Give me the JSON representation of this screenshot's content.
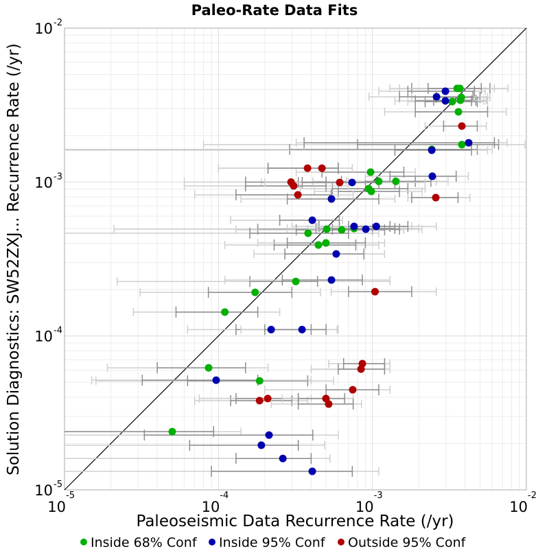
{
  "chart_data": {
    "type": "scatter",
    "title": "Paleo-Rate Data Fits",
    "xlabel": "Paleoseismic Data Recurrence Rate (/yr)",
    "ylabel": "Solution Diagnostics: SW52ZXJ... Recurrence Rate (/yr)",
    "xscale": "log",
    "yscale": "log",
    "xlim": [
      1e-05,
      0.01
    ],
    "ylim": [
      1e-05,
      0.01
    ],
    "grid": true,
    "reference_line": "y = x",
    "x_ticks": [
      {
        "base": "10",
        "exp": "-5"
      },
      {
        "base": "10",
        "exp": "-4"
      },
      {
        "base": "10",
        "exp": "-3"
      },
      {
        "base": "10",
        "exp": "-2"
      }
    ],
    "y_ticks": [
      {
        "base": "10",
        "exp": "-5"
      },
      {
        "base": "10",
        "exp": "-4"
      },
      {
        "base": "10",
        "exp": "-3"
      },
      {
        "base": "10",
        "exp": "-2"
      }
    ],
    "legend_position": "bottom",
    "series": [
      {
        "name": "Inside 68% Conf",
        "color": "#00b000",
        "points": [
          {
            "x": 0.00355,
            "y": 0.00406,
            "x68": [
              0.0018,
              0.0058
            ],
            "x95": [
              0.0013,
              0.0076
            ]
          },
          {
            "x": 0.0037,
            "y": 0.00406,
            "x68": [
              0.0023,
              0.0051
            ],
            "x95": [
              0.0015,
              0.0062
            ]
          },
          {
            "x": 0.0033,
            "y": 0.00333,
            "x68": [
              0.0022,
              0.0048
            ],
            "x95": [
              0.0017,
              0.0056
            ]
          },
          {
            "x": 0.00378,
            "y": 0.00355,
            "x68": [
              0.0026,
              0.005
            ],
            "x95": [
              0.0018,
              0.0058
            ]
          },
          {
            "x": 0.00373,
            "y": 0.0034,
            "x68": [
              0.0025,
              0.0047
            ],
            "x95": [
              0.0019,
              0.0055
            ]
          },
          {
            "x": 0.00362,
            "y": 0.00286,
            "x68": [
              0.0019,
              0.0056
            ],
            "x95": [
              0.0012,
              0.0074
            ]
          },
          {
            "x": 0.00381,
            "y": 0.00175,
            "x68": [
              0.0008,
              0.0066
            ],
            "x95": [
              8e-05,
              0.0098
            ]
          },
          {
            "x": 0.00243,
            "y": 0.00163,
            "x68": [
              0.00029,
              0.0048
            ],
            "x95": [
              1e-05,
              0.006
            ]
          },
          {
            "x": 0.000973,
            "y": 0.00116,
            "x68": [
              0.00047,
              0.0016
            ],
            "x95": [
              0.00032,
              0.0019
            ]
          },
          {
            "x": 0.0011,
            "y": 0.00101,
            "x68": [
              0.00063,
              0.0019
            ],
            "x95": [
              0.00041,
              0.0026
            ]
          },
          {
            "x": 0.00142,
            "y": 0.00101,
            "x68": [
              0.0009,
              0.0024
            ],
            "x95": [
              0.00068,
              0.0031
            ]
          },
          {
            "x": 0.000944,
            "y": 0.000906,
            "x68": [
              0.00055,
              0.0017
            ],
            "x95": [
              0.00034,
              0.0022
            ]
          },
          {
            "x": 0.000984,
            "y": 0.000869,
            "x68": [
              0.0006,
              0.0015
            ],
            "x95": [
              0.00042,
              0.0021
            ]
          },
          {
            "x": 0.000505,
            "y": 0.000494,
            "x68": [
              0.00018,
              0.001
            ],
            "x95": [
              2.1e-05,
              0.0014
            ]
          },
          {
            "x": 0.000632,
            "y": 0.000489,
            "x68": [
              0.00032,
              0.0012
            ],
            "x95": [
              0.00013,
              0.0016
            ]
          },
          {
            "x": 0.00076,
            "y": 0.000499,
            "x68": [
              0.00043,
              0.0014
            ],
            "x95": [
              0.00028,
              0.002
            ]
          },
          {
            "x": 0.000382,
            "y": 0.000465,
            "x68": [
              0.00016,
              0.0007
            ],
            "x95": [
              1e-05,
              0.0011
            ]
          },
          {
            "x": 0.000446,
            "y": 0.00039,
            "x68": [
              0.00023,
              0.00078
            ],
            "x95": [
              0.00011,
              0.0011
            ]
          },
          {
            "x": 0.000499,
            "y": 0.000402,
            "x68": [
              0.00028,
              0.0009
            ],
            "x95": [
              0.00018,
              0.0012
            ]
          },
          {
            "x": 0.000318,
            "y": 0.000226,
            "x68": [
              0.00016,
              0.00044
            ],
            "x95": [
              2.2e-05,
              0.0013
            ]
          },
          {
            "x": 0.000173,
            "y": 0.000192,
            "x68": [
              8.6e-05,
              0.0003
            ],
            "x95": [
              3.1e-05,
              0.00046
            ]
          },
          {
            "x": 0.00011,
            "y": 0.000143,
            "x68": [
              5.3e-05,
              0.00018
            ],
            "x95": [
              2.8e-05,
              0.00025
            ]
          },
          {
            "x": 8.63e-05,
            "y": 6.21e-05,
            "x68": [
              4e-05,
              0.00015
            ],
            "x95": [
              1.9e-05,
              0.00021
            ]
          },
          {
            "x": 0.000185,
            "y": 5.11e-05,
            "x68": [
              6.3e-05,
              0.00038
            ],
            "x95": [
              1.6e-05,
              0.00056
            ]
          },
          {
            "x": 5.01e-05,
            "y": 2.39e-05,
            "x68": [
              1e-05,
              9.3e-05
            ],
            "x95": [
              1e-05,
              0.00014
            ]
          }
        ]
      },
      {
        "name": "Inside 95% Conf",
        "color": "#0000b0",
        "points": [
          {
            "x": 0.00298,
            "y": 0.00389,
            "x68": [
              0.0017,
              0.0046
            ],
            "x95": [
              0.0011,
              0.0054
            ]
          },
          {
            "x": 0.00261,
            "y": 0.00358,
            "x68": [
              0.0015,
              0.0045
            ],
            "x95": [
              0.00095,
              0.0056
            ]
          },
          {
            "x": 0.00298,
            "y": 0.00337,
            "x68": [
              0.0019,
              0.0044
            ],
            "x95": [
              0.0014,
              0.0053
            ]
          },
          {
            "x": 0.00422,
            "y": 0.0018,
            "x68": [
              0.00036,
              0.0062
            ],
            "x95": [
              0.00032,
              0.0075
            ]
          },
          {
            "x": 0.00243,
            "y": 0.00161,
            "x68": [
              0.0014,
              0.0044
            ],
            "x95": [
              1e-05,
              0.0056
            ]
          },
          {
            "x": 0.000738,
            "y": 0.000993,
            "x68": [
              0.00033,
              0.0014
            ],
            "x95": [
              0.00019,
              0.0022
            ]
          },
          {
            "x": 0.00245,
            "y": 0.00109,
            "x68": [
              0.0013,
              0.0035
            ],
            "x95": [
              0.0009,
              0.0042
            ]
          },
          {
            "x": 0.000542,
            "y": 0.000776,
            "x68": [
              0.00028,
              0.0011
            ],
            "x95": [
              0.00014,
              0.0014
            ]
          },
          {
            "x": 0.000407,
            "y": 0.000565,
            "x68": [
              0.00025,
              0.00061
            ],
            "x95": [
              0.00012,
              0.00064
            ]
          },
          {
            "x": 0.00076,
            "y": 0.000515,
            "x68": [
              0.00045,
              0.0013
            ],
            "x95": [
              0.0003,
              0.0018
            ]
          },
          {
            "x": 0.000906,
            "y": 0.000494,
            "x68": [
              0.00055,
              0.0015
            ],
            "x95": [
              0.00038,
              0.0021
            ]
          },
          {
            "x": 0.00106,
            "y": 0.000515,
            "x68": [
              0.0007,
              0.0017
            ],
            "x95": [
              0.00044,
              0.0026
            ]
          },
          {
            "x": 0.000582,
            "y": 0.000341,
            "x68": [
              0.00027,
              0.00088
            ],
            "x95": [
              0.00017,
              0.0012
            ]
          },
          {
            "x": 0.000542,
            "y": 0.000231,
            "x68": [
              0.00026,
              0.00086
            ],
            "x95": [
              0.00011,
              0.0013
            ]
          },
          {
            "x": 0.00022,
            "y": 0.00011,
            "x68": [
              0.00013,
              0.0004
            ],
            "x95": [
              6.3e-05,
              0.00059
            ]
          },
          {
            "x": 0.000349,
            "y": 0.00011,
            "x68": [
              0.0002,
              0.0005
            ],
            "x95": [
              0.00014,
              0.0006
            ]
          },
          {
            "x": 9.66e-05,
            "y": 5.16e-05,
            "x68": [
              3.2e-05,
              0.00018
            ],
            "x95": [
              1.5e-05,
              0.0004
            ]
          },
          {
            "x": 0.000213,
            "y": 2.27e-05,
            "x68": [
              3.3e-05,
              0.00041
            ],
            "x95": [
              1e-05,
              0.0006
            ]
          },
          {
            "x": 0.00019,
            "y": 1.95e-05,
            "x68": [
              6.5e-05,
              0.00033
            ],
            "x95": [
              1e-05,
              0.00049
            ]
          },
          {
            "x": 0.000262,
            "y": 1.6e-05,
            "x68": [
              0.00013,
              0.0004
            ],
            "x95": [
              1e-05,
              0.00053
            ]
          },
          {
            "x": 0.000407,
            "y": 1.32e-05,
            "x68": [
              9e-05,
              0.00074
            ],
            "x95": [
              1e-05,
              0.0011
            ]
          }
        ]
      },
      {
        "name": "Outside 95% Conf",
        "color": "#b00000",
        "points": [
          {
            "x": 0.00381,
            "y": 0.00231,
            "x68": [
              0.0029,
              0.0048
            ],
            "x95": [
              0.0022,
              0.0055
            ]
          },
          {
            "x": 0.000379,
            "y": 0.00123,
            "x68": [
              0.00021,
              0.0006
            ],
            "x95": [
              0.0001,
              0.00074
            ]
          },
          {
            "x": 0.00047,
            "y": 0.00123,
            "x68": [
              0.00021,
              0.0006
            ],
            "x95": [
              0.0001,
              0.00074
            ]
          },
          {
            "x": 0.000296,
            "y": 0.001,
            "x68": [
              0.00015,
              0.0005
            ],
            "x95": [
              6e-05,
              0.0007
            ]
          },
          {
            "x": 0.000308,
            "y": 0.000944,
            "x68": [
              0.00015,
              0.0005
            ],
            "x95": [
              6e-05,
              0.0007
            ]
          },
          {
            "x": 0.000613,
            "y": 0.000993,
            "x68": [
              0.00035,
              0.0011
            ],
            "x95": [
              0.0002,
              0.0015
            ]
          },
          {
            "x": 0.000328,
            "y": 0.000826,
            "x68": [
              0.00013,
              0.00054
            ],
            "x95": [
              7e-05,
              0.00075
            ]
          },
          {
            "x": 0.00258,
            "y": 0.000792,
            "x68": [
              0.0018,
              0.0036
            ],
            "x95": [
              0.0017,
              0.0043
            ]
          },
          {
            "x": 0.00104,
            "y": 0.000194,
            "x68": [
              0.0007,
              0.0018
            ],
            "x95": [
              0.00054,
              0.0026
            ]
          },
          {
            "x": 0.000861,
            "y": 6.61e-05,
            "x68": [
              0.00065,
              0.0012
            ],
            "x95": [
              0.00052,
              0.0013
            ]
          },
          {
            "x": 0.000843,
            "y": 6.09e-05,
            "x68": [
              0.0006,
              0.0012
            ],
            "x95": [
              0.0004,
              0.0013
            ]
          },
          {
            "x": 0.000745,
            "y": 4.47e-05,
            "x68": [
              0.0005,
              0.0011
            ],
            "x95": [
              0.0002,
              0.0013
            ]
          },
          {
            "x": 0.000185,
            "y": 3.8e-05,
            "x68": [
              0.00012,
              0.0003
            ],
            "x95": [
              7e-05,
              0.00038
            ]
          },
          {
            "x": 0.000209,
            "y": 3.92e-05,
            "x68": [
              0.00013,
              0.00033
            ],
            "x95": [
              7.5e-05,
              0.0004
            ]
          },
          {
            "x": 0.000499,
            "y": 3.92e-05,
            "x68": [
              0.00033,
              0.00066
            ],
            "x95": [
              0.00026,
              0.00075
            ]
          },
          {
            "x": 0.00052,
            "y": 3.61e-05,
            "x68": [
              0.00033,
              0.00075
            ],
            "x95": [
              0.00022,
              0.00085
            ]
          }
        ]
      }
    ]
  },
  "legend": {
    "items": [
      {
        "label": "Inside 68% Conf",
        "color": "#00b000"
      },
      {
        "label": "Inside 95% Conf",
        "color": "#0000b0"
      },
      {
        "label": "Outside 95% Conf",
        "color": "#b00000"
      }
    ]
  }
}
